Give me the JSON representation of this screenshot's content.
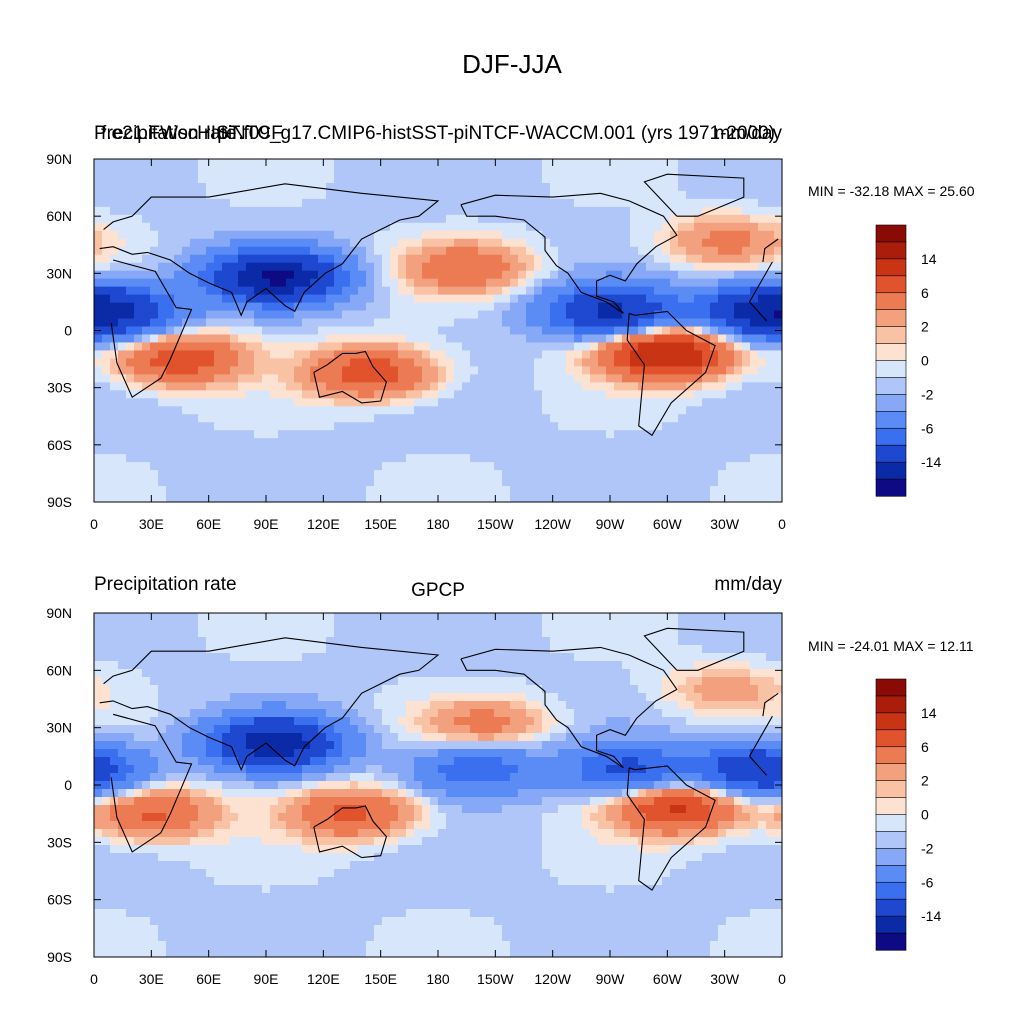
{
  "figure_title": "DJF-JJA",
  "chart_data": [
    {
      "type": "heatmap",
      "title": "DJF-JJA",
      "left_header": "Precipitation rate",
      "center_header": "f.e21.FWscHIST.f09_g17.CMIP6-histSST-piNTCF-WACCM.001 (yrs 1971-2000)",
      "center_header_overprint": "piNTCF",
      "right_header": "mm/day",
      "stats_text": "MIN = -32.18 MAX =  25.60",
      "min": -32.18,
      "max": 25.6,
      "x_ticks": [
        "0",
        "30E",
        "60E",
        "90E",
        "120E",
        "150E",
        "180",
        "150W",
        "120W",
        "90W",
        "60W",
        "30W",
        "0"
      ],
      "y_ticks": [
        "90N",
        "60N",
        "30N",
        "0",
        "30S",
        "60S",
        "90S"
      ],
      "xlim": [
        0,
        360
      ],
      "ylim": [
        -90,
        90
      ],
      "colorbar_labels": [
        "14",
        "6",
        "2",
        "0",
        "-2",
        "-6",
        "-14"
      ],
      "anomaly_features": [
        {
          "lon": 45,
          "lat": -15,
          "value": 6
        },
        {
          "lon": 95,
          "lat": 28,
          "value": -14
        },
        {
          "lon": 145,
          "lat": -22,
          "value": 6
        },
        {
          "lon": 195,
          "lat": 33,
          "value": 4
        },
        {
          "lon": 300,
          "lat": -12,
          "value": 10
        },
        {
          "lon": 330,
          "lat": 47,
          "value": 3
        },
        {
          "lon": 350,
          "lat": 10,
          "value": -10
        },
        {
          "lon": 15,
          "lat": 10,
          "value": -6
        },
        {
          "lon": 270,
          "lat": 10,
          "value": -10
        }
      ]
    },
    {
      "type": "heatmap",
      "left_header": "Precipitation rate",
      "center_header": "GPCP",
      "right_header": "mm/day",
      "stats_text": "MIN = -24.01 MAX =  12.11",
      "min": -24.01,
      "max": 12.11,
      "x_ticks": [
        "0",
        "30E",
        "60E",
        "90E",
        "120E",
        "150E",
        "180",
        "150W",
        "120W",
        "90W",
        "60W",
        "30W",
        "0"
      ],
      "y_ticks": [
        "90N",
        "60N",
        "30N",
        "0",
        "30S",
        "60S",
        "90S"
      ],
      "xlim": [
        0,
        360
      ],
      "ylim": [
        -90,
        90
      ],
      "colorbar_labels": [
        "14",
        "6",
        "2",
        "0",
        "-2",
        "-6",
        "-14"
      ],
      "anomaly_features": [
        {
          "lon": 30,
          "lat": -15,
          "value": 5
        },
        {
          "lon": 95,
          "lat": 22,
          "value": -12
        },
        {
          "lon": 135,
          "lat": -15,
          "value": 5
        },
        {
          "lon": 205,
          "lat": 32,
          "value": 3
        },
        {
          "lon": 305,
          "lat": -12,
          "value": 7
        },
        {
          "lon": 330,
          "lat": 50,
          "value": 2
        },
        {
          "lon": 350,
          "lat": 8,
          "value": -9
        },
        {
          "lon": 200,
          "lat": 8,
          "value": -5
        },
        {
          "lon": 280,
          "lat": 8,
          "value": -6
        }
      ]
    }
  ],
  "colorscale": [
    "#0d0a84",
    "#0a2aa8",
    "#1f48d0",
    "#3a6ff0",
    "#5b8cf5",
    "#86a8f7",
    "#b0c6f9",
    "#d8e6fb",
    "#fde2d1",
    "#f9c2a4",
    "#f3a07e",
    "#ec7a52",
    "#e0532d",
    "#c93514",
    "#a91d0a",
    "#8a0b06"
  ]
}
